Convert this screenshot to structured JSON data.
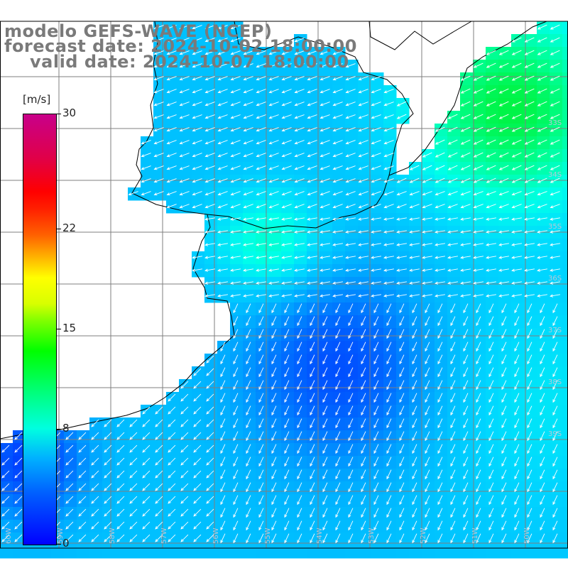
{
  "header": {
    "title": "modelo GEFS-WAVE (NCEP)",
    "forecast": "forecast date: 2024-10-02 18:00:00",
    "valid": "valid date: 2024-10-07 18:00:00"
  },
  "colorbar": {
    "unit": "[m/s]",
    "ticks": [
      {
        "label": "30",
        "value": 30
      },
      {
        "label": "22",
        "value": 22
      },
      {
        "label": "15",
        "value": 15
      },
      {
        "label": "8",
        "value": 8
      },
      {
        "label": "0",
        "value": 0
      }
    ],
    "colors": [
      "#0000ff",
      "#00b0ff",
      "#00ffe0",
      "#00ff00",
      "#ffff00",
      "#ff6000",
      "#ff0000",
      "#c8008a"
    ]
  },
  "map": {
    "variable": "wind speed and direction",
    "land_color": "#ffffff",
    "grid_color": "#808080",
    "coast_color": "#000000",
    "arrow_color": "#ffffff",
    "lat_labels": [
      "33S",
      "34S",
      "35S",
      "36S",
      "37S",
      "38S",
      "39S"
    ],
    "lon_labels": [
      "60W",
      "59W",
      "58W",
      "57W",
      "56W",
      "55W",
      "54W",
      "53W",
      "52W",
      "51W",
      "50W"
    ]
  }
}
